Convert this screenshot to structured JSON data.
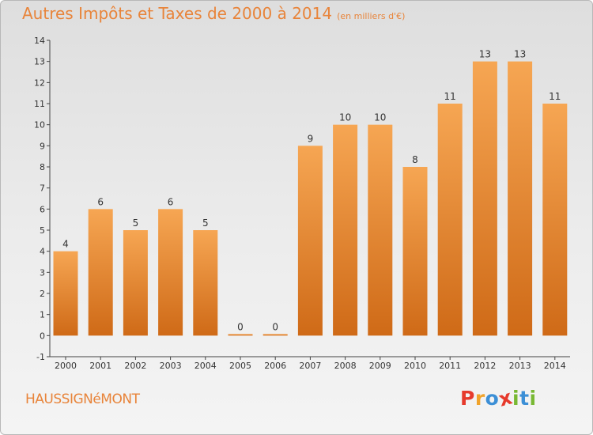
{
  "title": "Autres Impôts et Taxes de 2000 à 2014",
  "title_unit": "(en milliers d'€)",
  "commune": "HAUSSIGNéMONT",
  "brand": {
    "letters": [
      "P",
      "r",
      "o",
      "x",
      "i",
      "t",
      "i"
    ],
    "colors": [
      "#e63a2c",
      "#f0a32b",
      "#3c8fd6",
      "#e63a2c",
      "#78b833",
      "#3c8fd6",
      "#78b833"
    ]
  },
  "colors": {
    "bar_top": "#f6a653",
    "bar_bottom": "#cf6a17",
    "title": "#e8843a"
  },
  "chart_data": {
    "type": "bar",
    "categories": [
      "2000",
      "2001",
      "2002",
      "2003",
      "2004",
      "2005",
      "2006",
      "2007",
      "2008",
      "2009",
      "2010",
      "2011",
      "2012",
      "2013",
      "2014"
    ],
    "values": [
      4,
      6,
      5,
      6,
      5,
      0,
      0,
      9,
      10,
      10,
      8,
      11,
      13,
      13,
      11
    ],
    "ylim": [
      -1,
      14
    ],
    "yticks": [
      "-1",
      "0",
      "1",
      "2",
      "3",
      "4",
      "5",
      "6",
      "7",
      "8",
      "9",
      "10",
      "11",
      "12",
      "13",
      "14"
    ],
    "grid": false
  }
}
